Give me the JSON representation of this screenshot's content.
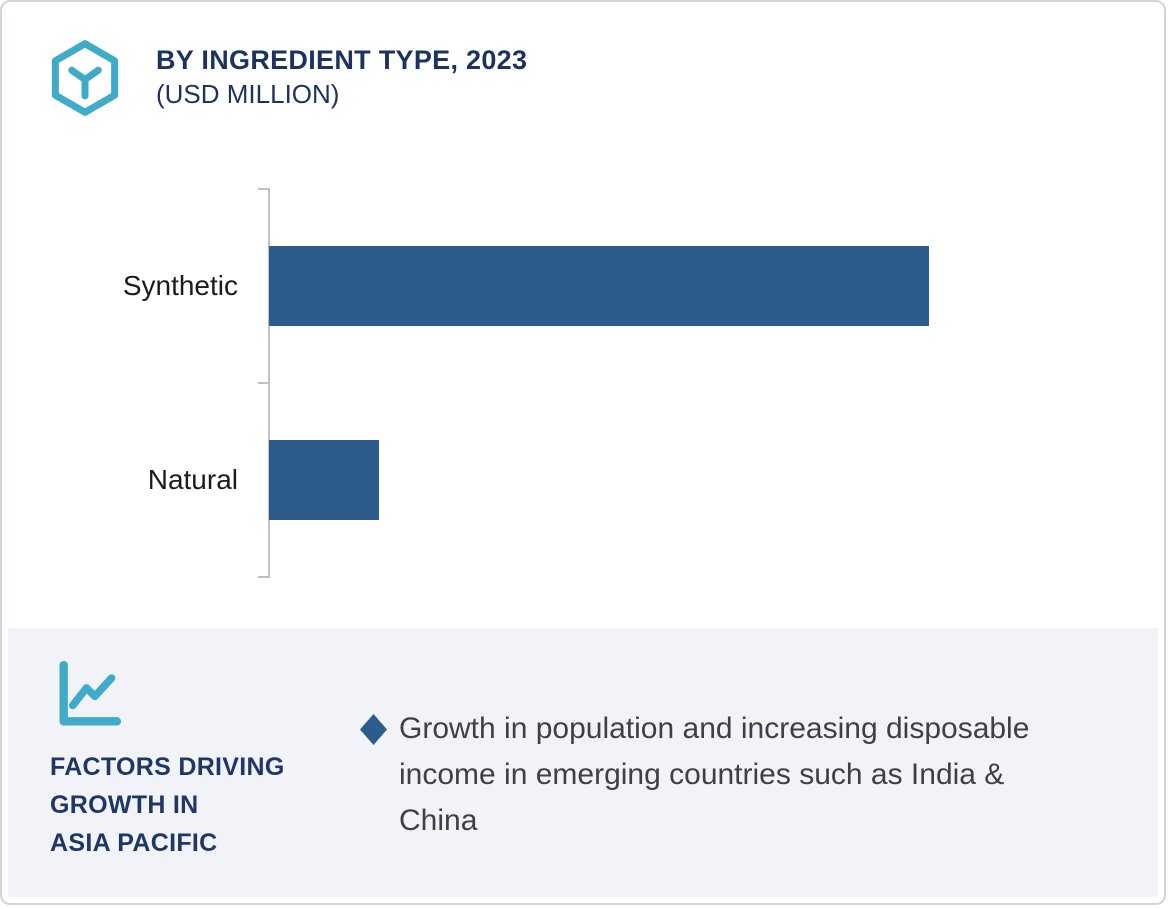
{
  "colors": {
    "accent_teal": "#40aac9",
    "bar_blue": "#2d5c8c",
    "navy": "#1c335f",
    "panel_bg": "#f2f3f8",
    "axis_gray": "#c1c2c6",
    "body_text": "#3e4044"
  },
  "header": {
    "logo_icon": "hexagon-y-logo-icon"
  },
  "chart_data": {
    "type": "bar",
    "orientation": "horizontal",
    "title": "BY INGREDIENT TYPE, 2023",
    "subtitle": "(USD MILLION)",
    "categories": [
      "Synthetic",
      "Natural"
    ],
    "values": [
      600,
      100
    ],
    "xlim": [
      0,
      772
    ],
    "xlabel": "",
    "ylabel": "",
    "grid": false,
    "legend": false,
    "value_labels_shown": false,
    "axis_numeric_labels_shown": false
  },
  "factors_panel": {
    "icon": "line-chart-icon",
    "heading": "FACTORS DRIVING\nGROWTH IN\nASIA PACIFIC",
    "bullets": [
      {
        "marker": "diamond",
        "text": "Growth in population and increasing disposable\nincome in emerging countries such as India &\nChina"
      }
    ]
  }
}
